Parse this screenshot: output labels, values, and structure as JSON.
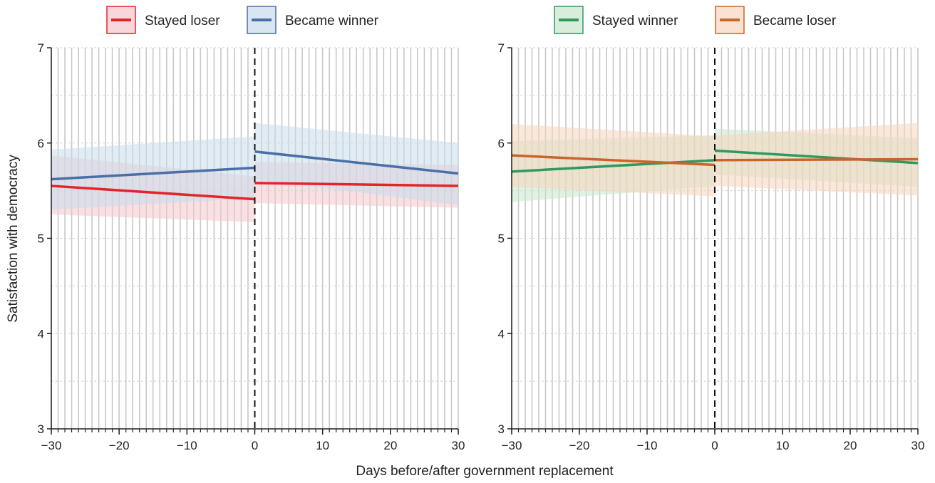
{
  "xlabel": "Days before/after government replacement",
  "ylabel": "Satisfaction with democracy",
  "chart_data": [
    {
      "type": "line",
      "xlim": [
        -30,
        30
      ],
      "ylim": [
        3,
        7
      ],
      "xticks": [
        -30,
        -20,
        -10,
        0,
        10,
        20,
        30
      ],
      "xtick_labels": [
        "−30",
        "−20",
        "−10",
        "0",
        "10",
        "20",
        "30"
      ],
      "yticks": [
        3,
        4,
        5,
        6,
        7
      ],
      "ytick_labels": [
        "3",
        "4",
        "5",
        "6",
        "7"
      ],
      "grid": true,
      "cutoff_x": 0,
      "legend": "top-center",
      "series": [
        {
          "name": "Stayed loser",
          "color": "#e3242b",
          "band_color": "#f4c6cc",
          "pre": {
            "x": [
              -30,
              0
            ],
            "y": [
              5.55,
              5.41
            ],
            "ci_upper": [
              5.87,
              5.65
            ],
            "ci_lower": [
              5.25,
              5.17
            ]
          },
          "post": {
            "x": [
              0,
              30
            ],
            "y": [
              5.58,
              5.55
            ],
            "ci_upper": [
              5.8,
              5.77
            ],
            "ci_lower": [
              5.37,
              5.32
            ]
          }
        },
        {
          "name": "Became winner",
          "color": "#4a6fa5",
          "band_color": "#c9dcec",
          "pre": {
            "x": [
              -30,
              0
            ],
            "y": [
              5.62,
              5.74
            ],
            "ci_upper": [
              5.93,
              6.07
            ],
            "ci_lower": [
              5.3,
              5.42
            ]
          },
          "post": {
            "x": [
              0,
              30
            ],
            "y": [
              5.91,
              5.68
            ],
            "ci_upper": [
              6.21,
              6.0
            ],
            "ci_lower": [
              5.62,
              5.35
            ]
          }
        }
      ]
    },
    {
      "type": "line",
      "xlim": [
        -30,
        30
      ],
      "ylim": [
        3,
        7
      ],
      "xticks": [
        -30,
        -20,
        -10,
        0,
        10,
        20,
        30
      ],
      "xtick_labels": [
        "−30",
        "−20",
        "−10",
        "0",
        "10",
        "20",
        "30"
      ],
      "yticks": [
        3,
        4,
        5,
        6,
        7
      ],
      "ytick_labels": [
        "3",
        "4",
        "5",
        "6",
        "7"
      ],
      "grid": true,
      "cutoff_x": 0,
      "legend": "top-center",
      "series": [
        {
          "name": "Stayed winner",
          "color": "#2e9a5e",
          "band_color": "#c8e6cc",
          "pre": {
            "x": [
              -30,
              0
            ],
            "y": [
              5.7,
              5.82
            ],
            "ci_upper": [
              6.02,
              6.08
            ],
            "ci_lower": [
              5.38,
              5.55
            ]
          },
          "post": {
            "x": [
              0,
              30
            ],
            "y": [
              5.92,
              5.79
            ],
            "ci_upper": [
              6.15,
              6.05
            ],
            "ci_lower": [
              5.67,
              5.54
            ]
          }
        },
        {
          "name": "Became loser",
          "color": "#c8652a",
          "band_color": "#f6d6bd",
          "pre": {
            "x": [
              -30,
              0
            ],
            "y": [
              5.87,
              5.77
            ],
            "ci_upper": [
              6.2,
              6.07
            ],
            "ci_lower": [
              5.54,
              5.44
            ]
          },
          "post": {
            "x": [
              0,
              30
            ],
            "y": [
              5.82,
              5.83
            ],
            "ci_upper": [
              6.08,
              6.21
            ],
            "ci_lower": [
              5.55,
              5.45
            ]
          }
        }
      ]
    }
  ]
}
